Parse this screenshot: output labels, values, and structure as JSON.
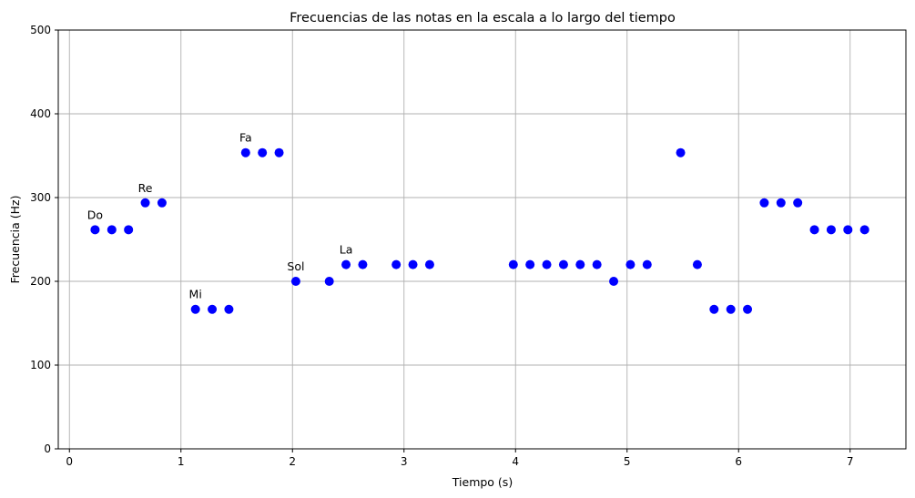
{
  "chart_data": {
    "type": "scatter",
    "title": "Frecuencias de las notas en la escala a lo largo del tiempo",
    "xlabel": "Tiempo (s)",
    "ylabel": "Frecuencia (Hz)",
    "xlim": [
      -0.1,
      7.5
    ],
    "ylim": [
      0,
      500
    ],
    "xticks": [
      0,
      1,
      2,
      3,
      4,
      5,
      6,
      7
    ],
    "yticks": [
      0,
      100,
      200,
      300,
      400,
      500
    ],
    "grid": true,
    "marker_color": "#0000ff",
    "series": [
      {
        "x": [
          0.23,
          0.38,
          0.53,
          0.68,
          0.83,
          1.13,
          1.28,
          1.43,
          1.58,
          1.73,
          1.88,
          2.03,
          2.33,
          2.48,
          2.63,
          2.93,
          3.08,
          3.23,
          3.98,
          4.13,
          4.28,
          4.43,
          4.58,
          4.73,
          4.88,
          5.03,
          5.18,
          5.48,
          5.63,
          5.78,
          5.93,
          6.08,
          6.23,
          6.38,
          6.53,
          6.68,
          6.83,
          6.98,
          7.13
        ],
        "y": [
          261.6,
          261.6,
          261.6,
          293.7,
          293.7,
          166.6,
          166.6,
          166.6,
          353.6,
          353.6,
          353.6,
          200.0,
          200.0,
          220.0,
          220.0,
          220.0,
          220.0,
          220.0,
          220.0,
          220.0,
          220.0,
          220.0,
          220.0,
          220.0,
          200.0,
          220.0,
          220.0,
          353.6,
          220.0,
          166.6,
          166.6,
          166.6,
          293.7,
          293.7,
          293.7,
          261.6,
          261.6,
          261.6,
          261.6
        ]
      }
    ],
    "annotations": [
      {
        "text": "Do",
        "x": 0.23,
        "y": 261.6
      },
      {
        "text": "Re",
        "x": 0.68,
        "y": 293.7
      },
      {
        "text": "Mi",
        "x": 1.13,
        "y": 166.6
      },
      {
        "text": "Fa",
        "x": 1.58,
        "y": 353.6
      },
      {
        "text": "Sol",
        "x": 2.03,
        "y": 200.0
      },
      {
        "text": "La",
        "x": 2.48,
        "y": 220.0
      }
    ]
  }
}
